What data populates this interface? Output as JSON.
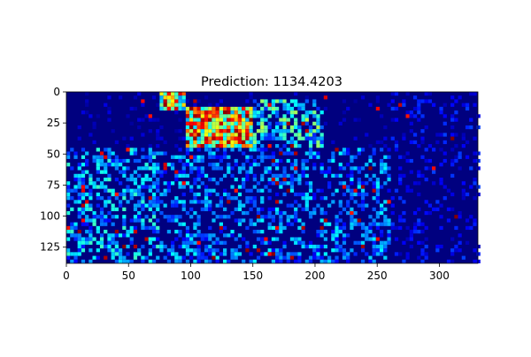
{
  "chart_data": {
    "type": "heatmap",
    "title": "Prediction: 1134.4203",
    "xlabel": "",
    "ylabel": "",
    "colormap": "jet",
    "colors": {
      "low": "#00007f",
      "mid": "#00ffff",
      "high": "#ff0000"
    },
    "xlim": [
      0,
      331
    ],
    "ylim": [
      138,
      0
    ],
    "xticks": [
      0,
      50,
      100,
      150,
      200,
      250,
      300
    ],
    "yticks": [
      0,
      25,
      50,
      75,
      100,
      125
    ],
    "grid": false,
    "legend": "none",
    "density_regions": [
      {
        "x": [
          75,
          95
        ],
        "y": [
          0,
          15
        ],
        "level": 0.75
      },
      {
        "x": [
          95,
          150
        ],
        "y": [
          10,
          45
        ],
        "level": 0.8
      },
      {
        "x": [
          150,
          205
        ],
        "y": [
          5,
          45
        ],
        "level": 0.45
      },
      {
        "x": [
          0,
          75
        ],
        "y": [
          45,
          138
        ],
        "level": 0.35
      },
      {
        "x": [
          75,
          260
        ],
        "y": [
          45,
          138
        ],
        "level": 0.3
      },
      {
        "x": [
          260,
          331
        ],
        "y": [
          0,
          138
        ],
        "level": 0.15
      }
    ]
  }
}
